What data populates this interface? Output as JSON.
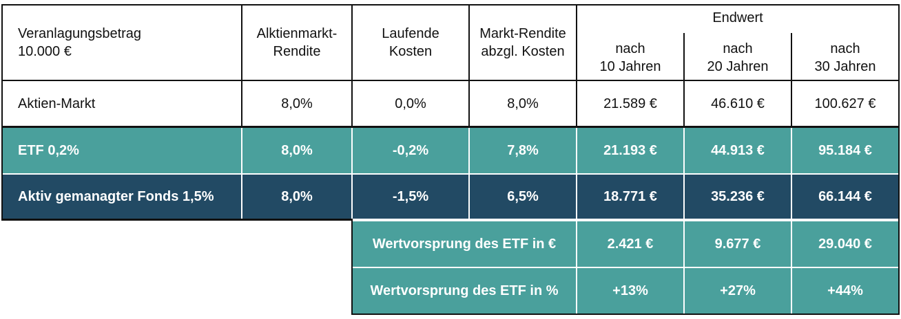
{
  "header": {
    "col1_line1": "Veranlagungsbetrag",
    "col1_line2": "10.000 €",
    "col2_line1": "Alktienmarkt-",
    "col2_line2": "Rendite",
    "col3_line1": "Laufende",
    "col3_line2": "Kosten",
    "col4_line1": "Markt-Rendite",
    "col4_line2": "abzgl. Kosten",
    "endwert": "Endwert",
    "y10_line1": "nach",
    "y10_line2": "10 Jahren",
    "y20_line1": "nach",
    "y20_line2": "20 Jahren",
    "y30_line1": "nach",
    "y30_line2": "30 Jahren"
  },
  "rows": [
    {
      "label": "Aktien-Markt",
      "rendite": "8,0%",
      "kosten": "0,0%",
      "netto": "8,0%",
      "y10": "21.589 €",
      "y20": "46.610 €",
      "y30": "100.627 €"
    },
    {
      "label": "ETF 0,2%",
      "rendite": "8,0%",
      "kosten": "-0,2%",
      "netto": "7,8%",
      "y10": "21.193 €",
      "y20": "44.913 €",
      "y30": "95.184 €"
    },
    {
      "label": "Aktiv gemanagter Fonds 1,5%",
      "rendite": "8,0%",
      "kosten": "-1,5%",
      "netto": "6,5%",
      "y10": "18.771 €",
      "y20": "35.236 €",
      "y30": "66.144 €"
    }
  ],
  "summary": [
    {
      "label": "Wertvorsprung des ETF in €",
      "y10": "2.421 €",
      "y20": "9.677 €",
      "y30": "29.040 €"
    },
    {
      "label": "Wertvorsprung des ETF in %",
      "y10": "+13%",
      "y20": "+27%",
      "y30": "+44%"
    }
  ],
  "colors": {
    "teal": "#4aa09c",
    "navy": "#224a64"
  }
}
